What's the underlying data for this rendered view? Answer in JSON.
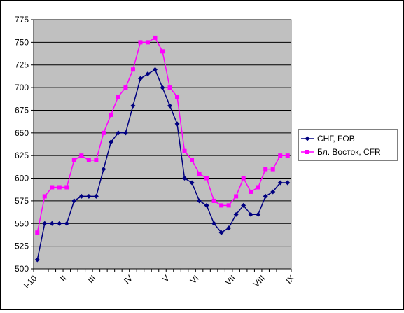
{
  "chart_data": {
    "type": "line",
    "ylim": [
      500,
      775
    ],
    "yticks": [
      500,
      525,
      550,
      575,
      600,
      625,
      650,
      675,
      700,
      725,
      750,
      775
    ],
    "grid": "horizontal",
    "plot_background": "#c0c0c0",
    "legend_position": "right",
    "x_tick_labels": [
      {
        "label": "I-10",
        "index": 0
      },
      {
        "label": "II",
        "index": 4
      },
      {
        "label": "III",
        "index": 8
      },
      {
        "label": "IV",
        "index": 13
      },
      {
        "label": "V",
        "index": 18
      },
      {
        "label": "VI",
        "index": 22
      },
      {
        "label": "VII",
        "index": 27
      },
      {
        "label": "VIII",
        "index": 31
      },
      {
        "label": "IX",
        "index": 35
      }
    ],
    "series": [
      {
        "name": "СНГ, FOB",
        "color": "#000080",
        "marker": "diamond",
        "values": [
          510,
          550,
          550,
          550,
          550,
          575,
          580,
          580,
          580,
          610,
          640,
          650,
          650,
          680,
          710,
          715,
          720,
          700,
          680,
          660,
          600,
          595,
          575,
          570,
          550,
          540,
          545,
          560,
          570,
          560,
          560,
          580,
          585,
          595,
          595
        ]
      },
      {
        "name": "Бл. Восток, CFR",
        "color": "#ff00ff",
        "marker": "square",
        "values": [
          540,
          580,
          590,
          590,
          590,
          620,
          625,
          620,
          620,
          650,
          670,
          690,
          700,
          720,
          750,
          750,
          755,
          740,
          700,
          690,
          630,
          620,
          605,
          600,
          575,
          570,
          570,
          580,
          600,
          585,
          590,
          610,
          610,
          625,
          625
        ]
      }
    ]
  }
}
